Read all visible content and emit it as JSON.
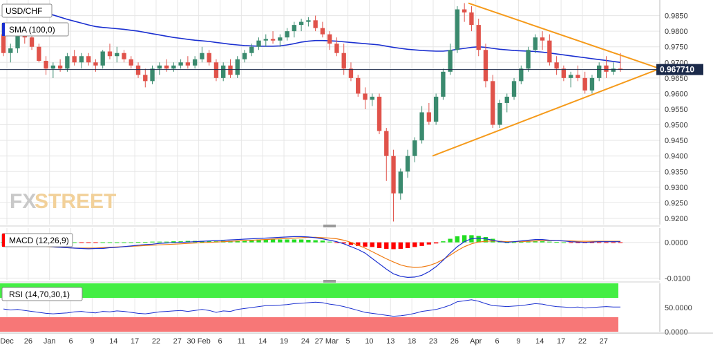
{
  "header": {
    "symbol": "USD/CHF"
  },
  "indicators": {
    "sma_label": "SMA (100,0)",
    "macd_label": "MACD (12,26,9)",
    "rsi_label": "RSI (14,70,30,1)"
  },
  "watermark": {
    "text_fx": "FX",
    "text_street": "STREET"
  },
  "colors": {
    "up_candle": "#3a8a6e",
    "down_candle": "#e0524a",
    "sma": "#1a2fd0",
    "trendline": "#f59a1a",
    "price_tag": "#1b2a4a",
    "macd_hist_up": "#22dd22",
    "macd_hist_down": "#ff0000",
    "rsi_overbought": "#44ee44",
    "rsi_oversold": "#f77777",
    "macd_line": "#1a2fd0",
    "signal_line": "#f07a10"
  },
  "chart_data": {
    "type": "candlestick",
    "title": "USD/CHF",
    "price_axis": {
      "ylim": [
        0.918,
        0.99
      ],
      "ticks": [
        "0.9850",
        "0.9800",
        "0.9750",
        "0.9700",
        "0.9650",
        "0.9600",
        "0.9550",
        "0.9500",
        "0.9450",
        "0.9400",
        "0.9350",
        "0.9300",
        "0.9250",
        "0.9200"
      ],
      "current_price": "0.967710"
    },
    "x_axis_labels": [
      "Dec",
      "26",
      "Jan",
      "6",
      "9",
      "14",
      "17",
      "22",
      "27",
      "30 Feb",
      "6",
      "11",
      "14",
      "19",
      "24",
      "27 Mar",
      "5",
      "10",
      "13",
      "18",
      "23",
      "26",
      "Apr",
      "6",
      "9",
      "14",
      "17",
      "22",
      "27"
    ],
    "candles": [
      [
        0.979,
        0.98,
        0.972,
        0.973
      ],
      [
        0.973,
        0.976,
        0.97,
        0.9745
      ],
      [
        0.9745,
        0.98,
        0.973,
        0.979
      ],
      [
        0.979,
        0.981,
        0.976,
        0.978
      ],
      [
        0.978,
        0.979,
        0.974,
        0.975
      ],
      [
        0.975,
        0.976,
        0.97,
        0.9705
      ],
      [
        0.9705,
        0.972,
        0.966,
        0.968
      ],
      [
        0.968,
        0.97,
        0.965,
        0.969
      ],
      [
        0.969,
        0.971,
        0.967,
        0.968
      ],
      [
        0.968,
        0.973,
        0.967,
        0.972
      ],
      [
        0.972,
        0.974,
        0.969,
        0.97
      ],
      [
        0.97,
        0.973,
        0.968,
        0.972
      ],
      [
        0.972,
        0.973,
        0.969,
        0.97
      ],
      [
        0.97,
        0.971,
        0.967,
        0.969
      ],
      [
        0.969,
        0.974,
        0.968,
        0.9735
      ],
      [
        0.9735,
        0.976,
        0.971,
        0.972
      ],
      [
        0.972,
        0.975,
        0.97,
        0.973
      ],
      [
        0.973,
        0.974,
        0.97,
        0.971
      ],
      [
        0.971,
        0.972,
        0.968,
        0.969
      ],
      [
        0.969,
        0.97,
        0.965,
        0.966
      ],
      [
        0.966,
        0.968,
        0.962,
        0.964
      ],
      [
        0.964,
        0.969,
        0.963,
        0.968
      ],
      [
        0.968,
        0.97,
        0.966,
        0.969
      ],
      [
        0.969,
        0.971,
        0.967,
        0.968
      ],
      [
        0.968,
        0.97,
        0.967,
        0.969
      ],
      [
        0.969,
        0.971,
        0.968,
        0.97
      ],
      [
        0.97,
        0.972,
        0.968,
        0.969
      ],
      [
        0.969,
        0.972,
        0.968,
        0.971
      ],
      [
        0.971,
        0.975,
        0.97,
        0.973
      ],
      [
        0.973,
        0.974,
        0.969,
        0.97
      ],
      [
        0.97,
        0.971,
        0.964,
        0.965
      ],
      [
        0.965,
        0.97,
        0.964,
        0.969
      ],
      [
        0.969,
        0.971,
        0.965,
        0.966
      ],
      [
        0.966,
        0.972,
        0.965,
        0.971
      ],
      [
        0.971,
        0.974,
        0.97,
        0.973
      ],
      [
        0.973,
        0.976,
        0.972,
        0.975
      ],
      [
        0.975,
        0.978,
        0.974,
        0.977
      ],
      [
        0.977,
        0.979,
        0.975,
        0.9775
      ],
      [
        0.9775,
        0.98,
        0.976,
        0.977
      ],
      [
        0.977,
        0.979,
        0.975,
        0.978
      ],
      [
        0.978,
        0.981,
        0.977,
        0.98
      ],
      [
        0.98,
        0.983,
        0.978,
        0.982
      ],
      [
        0.982,
        0.984,
        0.98,
        0.983
      ],
      [
        0.983,
        0.9845,
        0.9815,
        0.9835
      ],
      [
        0.9835,
        0.985,
        0.98,
        0.981
      ],
      [
        0.981,
        0.983,
        0.978,
        0.979
      ],
      [
        0.979,
        0.98,
        0.974,
        0.976
      ],
      [
        0.976,
        0.978,
        0.972,
        0.973
      ],
      [
        0.973,
        0.976,
        0.966,
        0.968
      ],
      [
        0.968,
        0.97,
        0.964,
        0.965
      ],
      [
        0.965,
        0.966,
        0.959,
        0.96
      ],
      [
        0.96,
        0.962,
        0.955,
        0.958
      ],
      [
        0.958,
        0.96,
        0.956,
        0.959
      ],
      [
        0.959,
        0.96,
        0.947,
        0.948
      ],
      [
        0.948,
        0.949,
        0.932,
        0.94
      ],
      [
        0.94,
        0.942,
        0.919,
        0.928
      ],
      [
        0.928,
        0.936,
        0.926,
        0.935
      ],
      [
        0.935,
        0.942,
        0.933,
        0.94
      ],
      [
        0.94,
        0.946,
        0.938,
        0.945
      ],
      [
        0.945,
        0.956,
        0.944,
        0.954
      ],
      [
        0.954,
        0.957,
        0.95,
        0.951
      ],
      [
        0.951,
        0.96,
        0.95,
        0.959
      ],
      [
        0.959,
        0.968,
        0.958,
        0.967
      ],
      [
        0.967,
        0.976,
        0.966,
        0.974
      ],
      [
        0.974,
        0.988,
        0.973,
        0.987
      ],
      [
        0.987,
        0.989,
        0.983,
        0.986
      ],
      [
        0.986,
        0.988,
        0.98,
        0.982
      ],
      [
        0.982,
        0.984,
        0.972,
        0.974
      ],
      [
        0.974,
        0.976,
        0.962,
        0.964
      ],
      [
        0.964,
        0.966,
        0.949,
        0.95
      ],
      [
        0.95,
        0.958,
        0.949,
        0.957
      ],
      [
        0.957,
        0.96,
        0.954,
        0.959
      ],
      [
        0.959,
        0.965,
        0.958,
        0.964
      ],
      [
        0.964,
        0.969,
        0.963,
        0.968
      ],
      [
        0.968,
        0.975,
        0.967,
        0.974
      ],
      [
        0.974,
        0.979,
        0.973,
        0.978
      ],
      [
        0.978,
        0.98,
        0.974,
        0.977
      ],
      [
        0.977,
        0.979,
        0.969,
        0.97
      ],
      [
        0.97,
        0.972,
        0.966,
        0.968
      ],
      [
        0.968,
        0.969,
        0.964,
        0.965
      ],
      [
        0.965,
        0.967,
        0.962,
        0.966
      ],
      [
        0.966,
        0.969,
        0.964,
        0.965
      ],
      [
        0.965,
        0.967,
        0.96,
        0.961
      ],
      [
        0.961,
        0.966,
        0.96,
        0.965
      ],
      [
        0.965,
        0.97,
        0.964,
        0.969
      ],
      [
        0.969,
        0.972,
        0.965,
        0.967
      ],
      [
        0.967,
        0.97,
        0.966,
        0.968
      ],
      [
        0.968,
        0.973,
        0.967,
        0.96771
      ]
    ],
    "sma_100": [
      0.988,
      0.9878,
      0.9876,
      0.9874,
      0.987,
      0.9866,
      0.986,
      0.9852,
      0.9845,
      0.9838,
      0.9832,
      0.9826,
      0.982,
      0.9815,
      0.9812,
      0.981,
      0.9808,
      0.9806,
      0.9803,
      0.98,
      0.9796,
      0.9792,
      0.9788,
      0.9784,
      0.978,
      0.9777,
      0.9774,
      0.9771,
      0.9769,
      0.9767,
      0.9764,
      0.9761,
      0.9758,
      0.9756,
      0.9754,
      0.9753,
      0.9752,
      0.9752,
      0.9752,
      0.9753,
      0.9756,
      0.976,
      0.9765,
      0.9768,
      0.977,
      0.977,
      0.9769,
      0.9768,
      0.9766,
      0.9764,
      0.9762,
      0.976,
      0.9758,
      0.9756,
      0.9752,
      0.9748,
      0.9745,
      0.9742,
      0.974,
      0.9738,
      0.9737,
      0.9736,
      0.9736,
      0.9738,
      0.9742,
      0.9745,
      0.9748,
      0.975,
      0.9748,
      0.9745,
      0.9742,
      0.974,
      0.9738,
      0.9737,
      0.9736,
      0.9735,
      0.9733,
      0.973,
      0.9727,
      0.9724,
      0.9721,
      0.9718,
      0.9715,
      0.9712,
      0.9709,
      0.9706,
      0.9703,
      0.97
    ],
    "trendlines": [
      {
        "from": [
          0.989
        ],
        "to": [
          0.968
        ]
      },
      {
        "from": [
          0.94
        ],
        "to": [
          0.968
        ]
      }
    ],
    "macd": {
      "ticks": [
        "0.0000",
        "-0.0100"
      ],
      "ylim": [
        -0.0105,
        0.004
      ],
      "histogram": [
        0.0001,
        0.0,
        -0.0001,
        -0.0001,
        -0.0001,
        -0.0002,
        -0.0002,
        -0.0001,
        -0.0001,
        0.0,
        0.0,
        -0.0001,
        -0.0001,
        -0.0001,
        0.0,
        0.0,
        0.0,
        0.0,
        0.0,
        0.0001,
        0.0001,
        0.0002,
        0.0002,
        0.0002,
        0.0003,
        0.0003,
        0.0004,
        0.0004,
        0.0004,
        0.0004,
        0.0003,
        0.0004,
        0.0004,
        0.0005,
        0.0006,
        0.0007,
        0.0008,
        0.0008,
        0.0008,
        0.0008,
        0.0008,
        0.0008,
        0.0008,
        0.0007,
        0.0006,
        0.0005,
        0.0002,
        -0.0001,
        -0.0003,
        -0.0007,
        -0.001,
        -0.0012,
        -0.0013,
        -0.0016,
        -0.0018,
        -0.0019,
        -0.0018,
        -0.0016,
        -0.0013,
        -0.001,
        -0.0006,
        -0.0003,
        0.0003,
        0.001,
        0.0017,
        0.002,
        0.002,
        0.0018,
        0.0015,
        0.001,
        0.0004,
        0.0,
        0.0,
        0.0001,
        0.0002,
        0.0003,
        0.0003,
        0.0002,
        0.0001,
        0.0,
        -0.0001,
        -0.0002,
        -0.0002,
        -0.0001,
        -0.0001,
        -0.0001,
        -0.0001,
        -0.0001
      ],
      "macd_line": [
        0.001,
        0.0005,
        0.0002,
        -0.0002,
        -0.0005,
        -0.0008,
        -0.0011,
        -0.0013,
        -0.0014,
        -0.0015,
        -0.0016,
        -0.0017,
        -0.0018,
        -0.0017,
        -0.0017,
        -0.0015,
        -0.0014,
        -0.0012,
        -0.001,
        -0.0008,
        -0.0006,
        -0.0005,
        -0.0003,
        -0.0002,
        -0.0001,
        0.0,
        0.0001,
        0.0002,
        0.0003,
        0.0004,
        0.0005,
        0.0006,
        0.0007,
        0.0008,
        0.0009,
        0.001,
        0.0011,
        0.0012,
        0.0013,
        0.0014,
        0.0015,
        0.0016,
        0.0016,
        0.0015,
        0.0013,
        0.001,
        0.0006,
        0.0002,
        -0.0004,
        -0.0012,
        -0.002,
        -0.003,
        -0.0045,
        -0.006,
        -0.0075,
        -0.0088,
        -0.0095,
        -0.0098,
        -0.0097,
        -0.0092,
        -0.0082,
        -0.0068,
        -0.005,
        -0.003,
        -0.0012,
        0.0002,
        0.001,
        0.0012,
        0.001,
        0.0006,
        0.0002,
        0.0,
        0.0002,
        0.0004,
        0.0006,
        0.0008,
        0.0008,
        0.0006,
        0.0005,
        0.0004,
        0.0002,
        0.0001,
        0.0,
        0.0001,
        0.0002,
        0.0002,
        0.0002,
        0.0002
      ],
      "signal_line": [
        0.0,
        -0.0002,
        -0.0004,
        -0.0006,
        -0.0008,
        -0.001,
        -0.0012,
        -0.0013,
        -0.0014,
        -0.0015,
        -0.0016,
        -0.0016,
        -0.0016,
        -0.0016,
        -0.0015,
        -0.0014,
        -0.0013,
        -0.0012,
        -0.0011,
        -0.001,
        -0.0009,
        -0.0008,
        -0.0007,
        -0.0006,
        -0.0005,
        -0.0004,
        -0.0003,
        -0.0002,
        -0.0001,
        0.0,
        0.0001,
        0.0002,
        0.0003,
        0.0004,
        0.0005,
        0.0006,
        0.0007,
        0.0008,
        0.0009,
        0.001,
        0.0011,
        0.0012,
        0.0013,
        0.0014,
        0.0014,
        0.0013,
        0.0012,
        0.001,
        0.0006,
        0.0,
        -0.0008,
        -0.0016,
        -0.0026,
        -0.0036,
        -0.0046,
        -0.0055,
        -0.0063,
        -0.0068,
        -0.007,
        -0.0069,
        -0.0065,
        -0.0058,
        -0.0048,
        -0.0036,
        -0.0023,
        -0.0012,
        -0.0004,
        0.0001,
        0.0003,
        0.0004,
        0.0003,
        0.0002,
        0.0002,
        0.0002,
        0.0003,
        0.0004,
        0.0005,
        0.0005,
        0.0005,
        0.0004,
        0.0004,
        0.0003,
        0.0003,
        0.0003,
        0.0003,
        0.0003,
        0.0003,
        0.0003
      ]
    },
    "rsi": {
      "ticks": [
        "50.0000",
        "0.0000"
      ],
      "ylim": [
        0,
        100
      ],
      "overbought": 70,
      "oversold": 30,
      "values": [
        47,
        45,
        46,
        44,
        42,
        40,
        38,
        37,
        38,
        39,
        41,
        42,
        40,
        39,
        42,
        41,
        43,
        42,
        40,
        38,
        37,
        39,
        41,
        42,
        43,
        44,
        42,
        44,
        46,
        44,
        40,
        43,
        42,
        46,
        48,
        50,
        52,
        54,
        54,
        55,
        56,
        58,
        59,
        60,
        61,
        60,
        57,
        55,
        52,
        48,
        44,
        40,
        38,
        36,
        34,
        32,
        33,
        35,
        38,
        42,
        44,
        46,
        50,
        55,
        62,
        64,
        66,
        63,
        58,
        54,
        53,
        52,
        53,
        54,
        56,
        58,
        57,
        54,
        52,
        51,
        50,
        51,
        49,
        50,
        51,
        52,
        51,
        51
      ]
    }
  }
}
